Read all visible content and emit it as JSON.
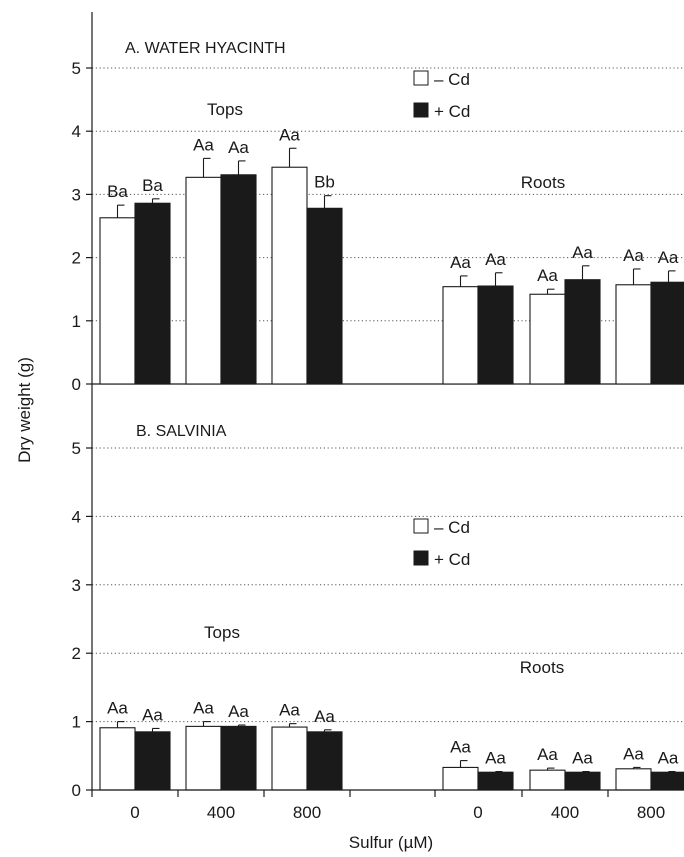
{
  "y_axis_label": "Dry weight (g)",
  "x_axis_label": "Sulfur (µM)",
  "x_tick_labels": [
    "0",
    "400",
    "800",
    "0",
    "400",
    "800"
  ],
  "legend": {
    "minus": "– Cd",
    "plus": "+ Cd"
  },
  "colors": {
    "minus_cd": "#ffffff",
    "plus_cd": "#1a1a1a",
    "grid": "#555555",
    "axis": "#1a1a1a"
  },
  "chart_data": [
    {
      "type": "bar",
      "title": "A. WATER HYACINTH",
      "ylim": [
        0,
        5
      ],
      "yticks": [
        "0",
        "1",
        "2",
        "3",
        "4",
        "5"
      ],
      "grid": "horizontal dotted",
      "legend_position": "top-right",
      "group_labels": [
        {
          "label": "Tops",
          "group": "tops"
        },
        {
          "label": "Roots",
          "group": "roots"
        }
      ],
      "categories": [
        "Tops 0",
        "Tops 400",
        "Tops 800",
        "Roots 0",
        "Roots 400",
        "Roots 800"
      ],
      "series": [
        {
          "name": "– Cd",
          "values": [
            2.63,
            3.27,
            3.43,
            1.54,
            1.42,
            1.57
          ],
          "errors": [
            0.2,
            0.3,
            0.3,
            0.17,
            0.08,
            0.25
          ],
          "labels": [
            "Ba",
            "Aa",
            "Aa",
            "Aa",
            "Aa",
            "Aa"
          ]
        },
        {
          "name": "+ Cd",
          "values": [
            2.86,
            3.31,
            2.78,
            1.55,
            1.65,
            1.61
          ],
          "errors": [
            0.07,
            0.22,
            0.2,
            0.21,
            0.22,
            0.18
          ],
          "labels": [
            "Ba",
            "Aa",
            "Bb",
            "Aa",
            "Aa",
            "Aa"
          ]
        }
      ]
    },
    {
      "type": "bar",
      "title": "B. SALVINIA",
      "ylim": [
        0,
        5
      ],
      "yticks": [
        "0",
        "1",
        "2",
        "3",
        "4",
        "5"
      ],
      "grid": "horizontal dotted",
      "legend_position": "center-right",
      "group_labels": [
        {
          "label": "Tops",
          "group": "tops"
        },
        {
          "label": "Roots",
          "group": "roots"
        }
      ],
      "categories": [
        "Tops 0",
        "Tops 400",
        "Tops 800",
        "Roots 0",
        "Roots 400",
        "Roots 800"
      ],
      "series": [
        {
          "name": "– Cd",
          "values": [
            0.91,
            0.93,
            0.92,
            0.33,
            0.29,
            0.31
          ],
          "errors": [
            0.09,
            0.07,
            0.05,
            0.1,
            0.03,
            0.02
          ],
          "labels": [
            "Aa",
            "Aa",
            "Aa",
            "Aa",
            "Aa",
            "Aa"
          ]
        },
        {
          "name": "+ Cd",
          "values": [
            0.85,
            0.93,
            0.85,
            0.26,
            0.26,
            0.26
          ],
          "errors": [
            0.05,
            0.02,
            0.03,
            0.01,
            0.01,
            0.01
          ],
          "labels": [
            "Aa",
            "Aa",
            "Aa",
            "Aa",
            "Aa",
            "Aa"
          ]
        }
      ]
    }
  ]
}
